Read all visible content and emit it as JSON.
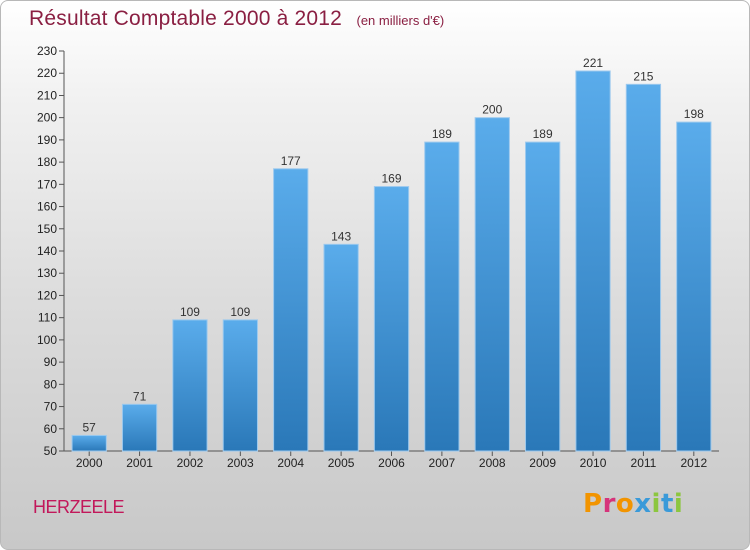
{
  "header": {
    "title": "Résultat Comptable 2000 à 2012",
    "subtitle": "(en milliers d'€)"
  },
  "footer": {
    "town": "HERZEELE",
    "logo_text": "Proxiti"
  },
  "colors": {
    "title": "#8a1f42",
    "town": "#c2185b",
    "bar_top": "#5aaceb",
    "bar_bottom": "#2a78b8",
    "logo_letters": [
      "#f29400",
      "#d6337a",
      "#f29400",
      "#3a9ad9",
      "#8cc63f",
      "#3a9ad9",
      "#8cc63f"
    ]
  },
  "chart_data": {
    "type": "bar",
    "title": "Résultat Comptable 2000 à 2012",
    "subtitle": "(en milliers d'€)",
    "categories": [
      "2000",
      "2001",
      "2002",
      "2003",
      "2004",
      "2005",
      "2006",
      "2007",
      "2008",
      "2009",
      "2010",
      "2011",
      "2012"
    ],
    "values": [
      57,
      71,
      109,
      109,
      177,
      143,
      169,
      189,
      200,
      189,
      221,
      215,
      198
    ],
    "ylim": [
      50,
      230
    ],
    "ytick_step": 10,
    "grid": false,
    "data_labels": true
  }
}
